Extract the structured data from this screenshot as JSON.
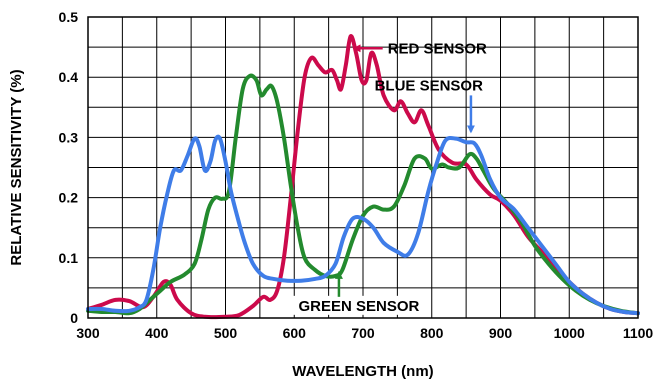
{
  "chart_data": {
    "type": "line",
    "xlabel": "WAVELENGTH (nm)",
    "ylabel": "RELATIVE SENSITIVITY (%)",
    "xlim": [
      300,
      1100
    ],
    "ylim": [
      0,
      0.5
    ],
    "x_ticks": [
      300,
      400,
      500,
      600,
      700,
      800,
      900,
      1000,
      1100
    ],
    "y_ticks": [
      0,
      0.1,
      0.2,
      0.3,
      0.4,
      0.5
    ],
    "x_tick_labels": [
      "300",
      "400",
      "500",
      "600",
      "700",
      "800",
      "900",
      "1000",
      "1100"
    ],
    "y_tick_labels": [
      "0",
      "0.1",
      "0.2",
      "0.3",
      "0.4",
      "0.5"
    ],
    "grid": true,
    "series": [
      {
        "name": "RED SENSOR",
        "color": "#cc0a4b",
        "points": [
          [
            300,
            0.015
          ],
          [
            320,
            0.022
          ],
          [
            340,
            0.03
          ],
          [
            360,
            0.028
          ],
          [
            380,
            0.018
          ],
          [
            395,
            0.035
          ],
          [
            410,
            0.06
          ],
          [
            420,
            0.055
          ],
          [
            430,
            0.03
          ],
          [
            450,
            0.008
          ],
          [
            470,
            0.002
          ],
          [
            500,
            0.002
          ],
          [
            520,
            0.005
          ],
          [
            540,
            0.02
          ],
          [
            555,
            0.035
          ],
          [
            565,
            0.03
          ],
          [
            575,
            0.045
          ],
          [
            585,
            0.1
          ],
          [
            595,
            0.2
          ],
          [
            605,
            0.31
          ],
          [
            615,
            0.4
          ],
          [
            625,
            0.432
          ],
          [
            635,
            0.42
          ],
          [
            645,
            0.408
          ],
          [
            655,
            0.412
          ],
          [
            662,
            0.395
          ],
          [
            668,
            0.38
          ],
          [
            675,
            0.42
          ],
          [
            682,
            0.468
          ],
          [
            690,
            0.44
          ],
          [
            698,
            0.395
          ],
          [
            705,
            0.395
          ],
          [
            712,
            0.44
          ],
          [
            720,
            0.42
          ],
          [
            730,
            0.37
          ],
          [
            745,
            0.345
          ],
          [
            755,
            0.36
          ],
          [
            765,
            0.34
          ],
          [
            775,
            0.325
          ],
          [
            785,
            0.345
          ],
          [
            795,
            0.32
          ],
          [
            810,
            0.28
          ],
          [
            830,
            0.258
          ],
          [
            850,
            0.255
          ],
          [
            865,
            0.23
          ],
          [
            885,
            0.205
          ],
          [
            900,
            0.195
          ],
          [
            920,
            0.17
          ],
          [
            940,
            0.135
          ],
          [
            960,
            0.11
          ],
          [
            980,
            0.085
          ],
          [
            1000,
            0.06
          ],
          [
            1020,
            0.04
          ],
          [
            1040,
            0.025
          ],
          [
            1060,
            0.015
          ],
          [
            1080,
            0.01
          ],
          [
            1100,
            0.008
          ]
        ]
      },
      {
        "name": "GREEN SENSOR",
        "color": "#238a2e",
        "points": [
          [
            300,
            0.012
          ],
          [
            320,
            0.01
          ],
          [
            340,
            0.01
          ],
          [
            360,
            0.008
          ],
          [
            375,
            0.015
          ],
          [
            390,
            0.03
          ],
          [
            405,
            0.045
          ],
          [
            420,
            0.06
          ],
          [
            440,
            0.072
          ],
          [
            455,
            0.09
          ],
          [
            465,
            0.13
          ],
          [
            475,
            0.18
          ],
          [
            485,
            0.2
          ],
          [
            495,
            0.198
          ],
          [
            505,
            0.21
          ],
          [
            515,
            0.3
          ],
          [
            525,
            0.38
          ],
          [
            535,
            0.402
          ],
          [
            545,
            0.395
          ],
          [
            552,
            0.37
          ],
          [
            560,
            0.38
          ],
          [
            567,
            0.385
          ],
          [
            575,
            0.36
          ],
          [
            585,
            0.3
          ],
          [
            595,
            0.22
          ],
          [
            605,
            0.15
          ],
          [
            615,
            0.1
          ],
          [
            630,
            0.08
          ],
          [
            645,
            0.07
          ],
          [
            660,
            0.07
          ],
          [
            670,
            0.08
          ],
          [
            685,
            0.13
          ],
          [
            700,
            0.17
          ],
          [
            715,
            0.185
          ],
          [
            730,
            0.18
          ],
          [
            745,
            0.185
          ],
          [
            760,
            0.22
          ],
          [
            775,
            0.265
          ],
          [
            790,
            0.265
          ],
          [
            800,
            0.248
          ],
          [
            815,
            0.255
          ],
          [
            825,
            0.25
          ],
          [
            840,
            0.25
          ],
          [
            855,
            0.272
          ],
          [
            865,
            0.265
          ],
          [
            875,
            0.245
          ],
          [
            890,
            0.215
          ],
          [
            910,
            0.19
          ],
          [
            930,
            0.16
          ],
          [
            950,
            0.12
          ],
          [
            970,
            0.09
          ],
          [
            990,
            0.065
          ],
          [
            1010,
            0.045
          ],
          [
            1030,
            0.03
          ],
          [
            1050,
            0.02
          ],
          [
            1075,
            0.012
          ],
          [
            1100,
            0.008
          ]
        ]
      },
      {
        "name": "BLUE SENSOR",
        "color": "#3f7de8",
        "points": [
          [
            300,
            0.015
          ],
          [
            320,
            0.015
          ],
          [
            340,
            0.012
          ],
          [
            360,
            0.012
          ],
          [
            375,
            0.018
          ],
          [
            385,
            0.03
          ],
          [
            395,
            0.08
          ],
          [
            405,
            0.15
          ],
          [
            415,
            0.205
          ],
          [
            425,
            0.245
          ],
          [
            435,
            0.245
          ],
          [
            445,
            0.27
          ],
          [
            455,
            0.298
          ],
          [
            462,
            0.285
          ],
          [
            470,
            0.245
          ],
          [
            478,
            0.26
          ],
          [
            485,
            0.295
          ],
          [
            492,
            0.298
          ],
          [
            500,
            0.26
          ],
          [
            508,
            0.21
          ],
          [
            518,
            0.165
          ],
          [
            528,
            0.125
          ],
          [
            540,
            0.09
          ],
          [
            555,
            0.07
          ],
          [
            570,
            0.065
          ],
          [
            590,
            0.062
          ],
          [
            610,
            0.062
          ],
          [
            630,
            0.065
          ],
          [
            645,
            0.07
          ],
          [
            660,
            0.09
          ],
          [
            672,
            0.135
          ],
          [
            685,
            0.165
          ],
          [
            700,
            0.165
          ],
          [
            715,
            0.15
          ],
          [
            730,
            0.125
          ],
          [
            750,
            0.11
          ],
          [
            765,
            0.105
          ],
          [
            780,
            0.14
          ],
          [
            795,
            0.21
          ],
          [
            808,
            0.26
          ],
          [
            820,
            0.295
          ],
          [
            835,
            0.298
          ],
          [
            850,
            0.292
          ],
          [
            862,
            0.29
          ],
          [
            872,
            0.27
          ],
          [
            885,
            0.23
          ],
          [
            900,
            0.2
          ],
          [
            920,
            0.18
          ],
          [
            940,
            0.15
          ],
          [
            960,
            0.12
          ],
          [
            980,
            0.09
          ],
          [
            1000,
            0.06
          ],
          [
            1020,
            0.04
          ],
          [
            1040,
            0.025
          ],
          [
            1060,
            0.015
          ],
          [
            1080,
            0.01
          ],
          [
            1100,
            0.008
          ]
        ]
      }
    ],
    "annotations": [
      {
        "id": "red",
        "text": "RED SENSOR",
        "point_x": 685,
        "point_y": 0.448,
        "color": "#cc0a4b"
      },
      {
        "id": "blue",
        "text": "BLUE SENSOR",
        "point_x": 857,
        "point_y": 0.3,
        "color": "#3f7de8"
      },
      {
        "id": "green",
        "text": "GREEN SENSOR",
        "point_x": 665,
        "point_y": 0.085,
        "color": "#238a2e"
      }
    ]
  }
}
